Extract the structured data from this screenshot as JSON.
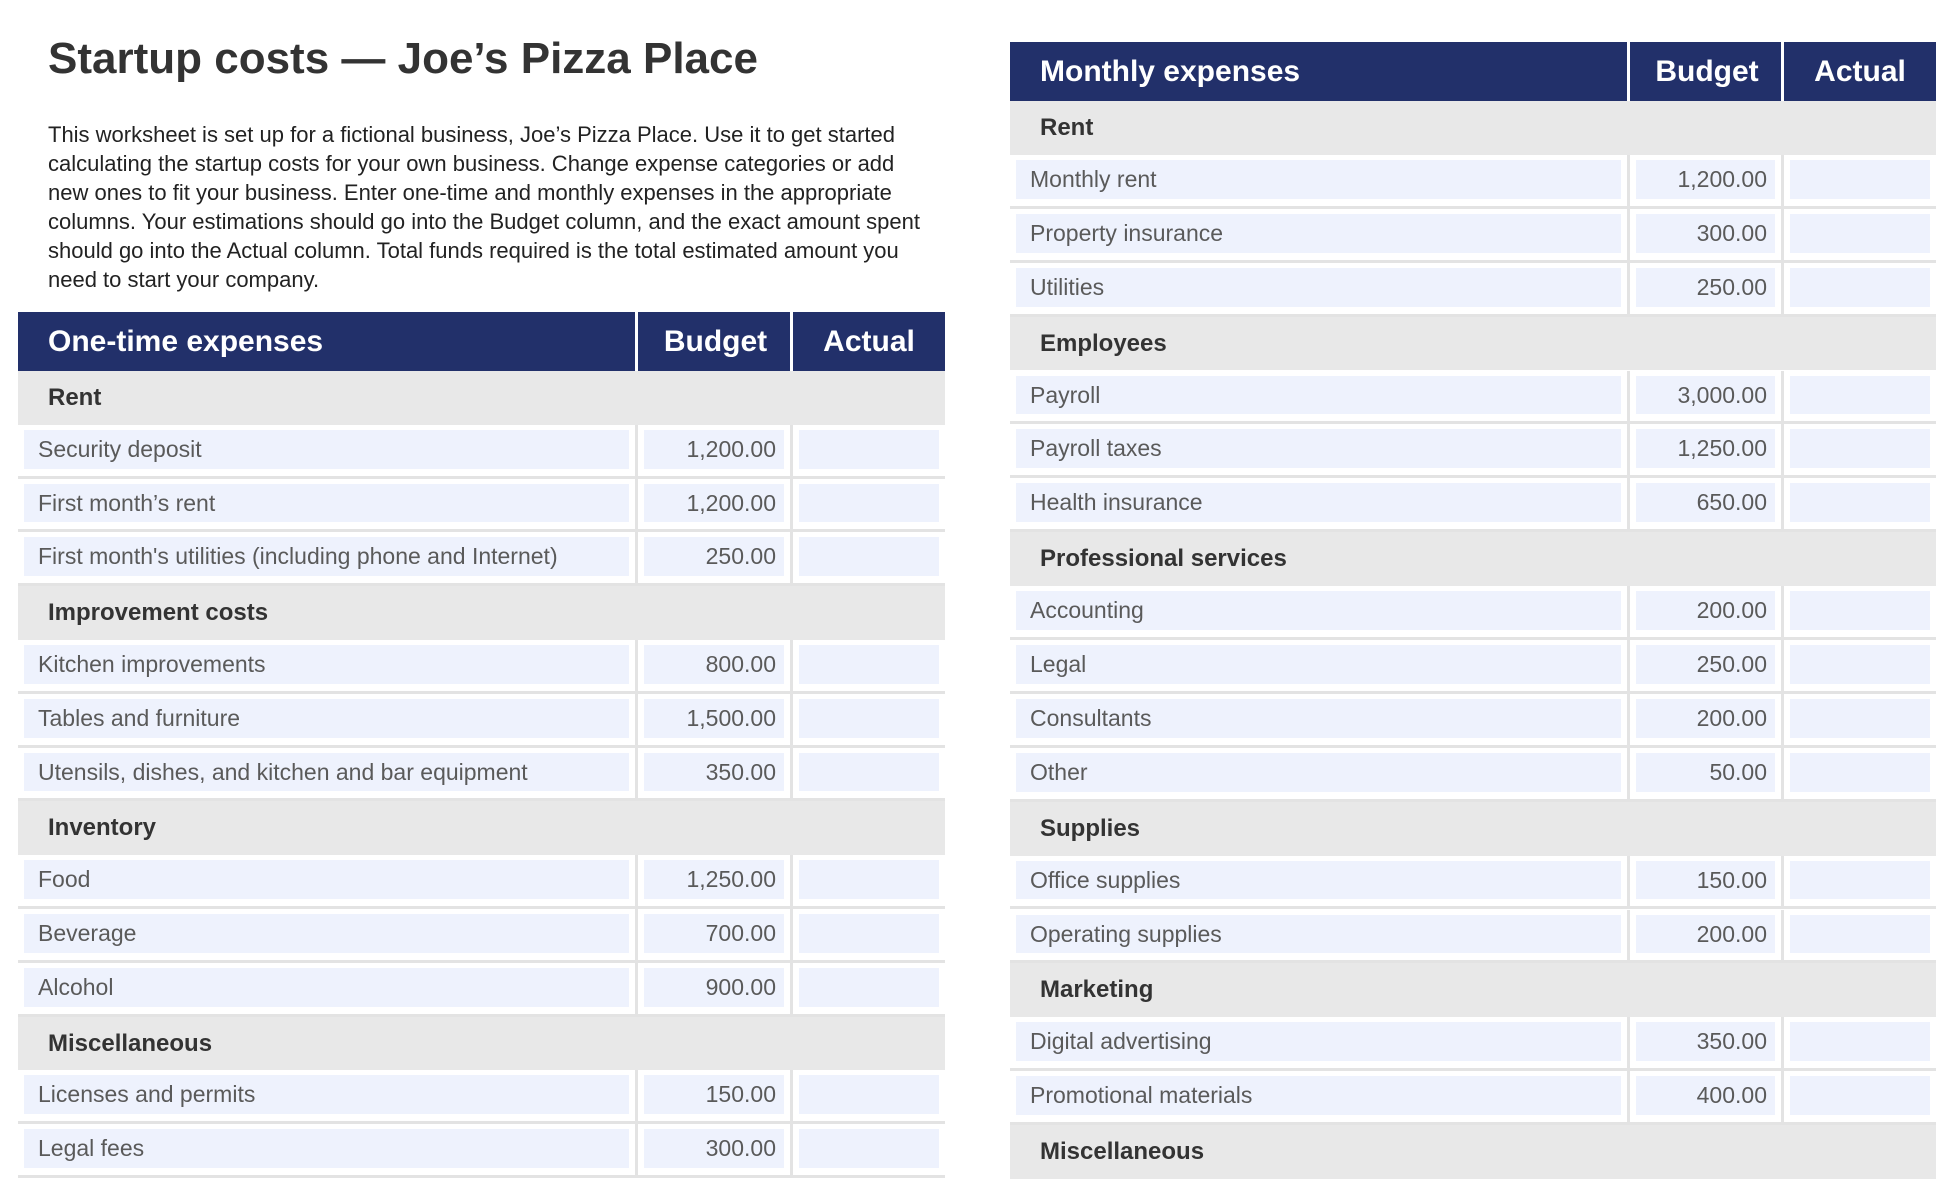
{
  "title": "Startup costs — Joe’s Pizza Place",
  "description": "This worksheet is set up for a fictional business, Joe’s Pizza Place. Use it to get started calculating the startup costs for your own business. Change expense categories or add new ones to fit your business. Enter one-time and monthly expenses in the appropriate columns. Your estimations should go into the Budget column, and the exact amount spent should go into the Actual column. Total funds required is the total estimated amount you need to start your company.",
  "one_time": {
    "header": [
      "One-time expenses",
      "Budget",
      "Actual"
    ],
    "sections": [
      {
        "name": "Rent",
        "rows": [
          {
            "item": "Security deposit",
            "budget": "1,200.00"
          },
          {
            "item": "First month’s rent",
            "budget": "1,200.00"
          },
          {
            "item": "First month's utilities (including phone and Internet)",
            "budget": "250.00"
          }
        ]
      },
      {
        "name": "Improvement costs",
        "rows": [
          {
            "item": "Kitchen improvements",
            "budget": "800.00"
          },
          {
            "item": "Tables and furniture",
            "budget": "1,500.00"
          },
          {
            "item": "Utensils, dishes, and kitchen and bar equipment",
            "budget": "350.00"
          }
        ]
      },
      {
        "name": "Inventory",
        "rows": [
          {
            "item": "Food",
            "budget": "1,250.00"
          },
          {
            "item": "Beverage",
            "budget": "700.00"
          },
          {
            "item": "Alcohol",
            "budget": "900.00"
          }
        ]
      },
      {
        "name": "Miscellaneous",
        "rows": [
          {
            "item": "Licenses and permits",
            "budget": "150.00"
          },
          {
            "item": "Legal fees",
            "budget": "300.00"
          }
        ]
      }
    ]
  },
  "monthly": {
    "header": [
      "Monthly expenses",
      "Budget",
      "Actual"
    ],
    "sections": [
      {
        "name": "Rent",
        "rows": [
          {
            "item": "Monthly rent",
            "budget": "1,200.00"
          },
          {
            "item": "Property insurance",
            "budget": "300.00"
          },
          {
            "item": "Utilities",
            "budget": "250.00"
          }
        ]
      },
      {
        "name": "Employees",
        "rows": [
          {
            "item": "Payroll",
            "budget": "3,000.00"
          },
          {
            "item": "Payroll taxes",
            "budget": "1,250.00"
          },
          {
            "item": "Health insurance",
            "budget": "650.00"
          }
        ]
      },
      {
        "name": "Professional services",
        "rows": [
          {
            "item": "Accounting",
            "budget": "200.00"
          },
          {
            "item": "Legal",
            "budget": "250.00"
          },
          {
            "item": "Consultants",
            "budget": "200.00"
          },
          {
            "item": "Other",
            "budget": "50.00"
          }
        ]
      },
      {
        "name": "Supplies",
        "rows": [
          {
            "item": "Office supplies",
            "budget": "150.00"
          },
          {
            "item": "Operating supplies",
            "budget": "200.00"
          }
        ]
      },
      {
        "name": "Marketing",
        "rows": [
          {
            "item": "Digital advertising",
            "budget": "350.00"
          },
          {
            "item": "Promotional materials",
            "budget": "400.00"
          }
        ]
      },
      {
        "name": "Miscellaneous",
        "rows": []
      }
    ]
  }
}
